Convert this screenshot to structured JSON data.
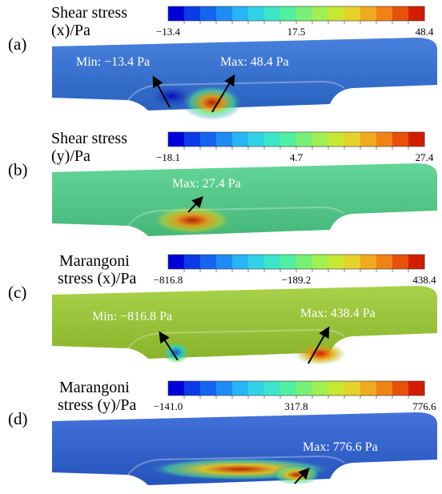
{
  "panels": [
    {
      "label": "(a)",
      "title": [
        "Shear stress",
        "(x)/Pa"
      ],
      "ticks": [
        "−13.4",
        "17.5",
        "48.4"
      ],
      "annotations": [
        "Min: −13.4 Pa",
        "Max: 48.4 Pa"
      ]
    },
    {
      "label": "(b)",
      "title": [
        "Shear stress",
        "(y)/Pa"
      ],
      "ticks": [
        "−18.1",
        "4.7",
        "27.4"
      ],
      "annotations": [
        "Max: 27.4 Pa"
      ]
    },
    {
      "label": "(c)",
      "title": [
        "Marangoni",
        "stress (x)/Pa"
      ],
      "ticks": [
        "−816.8",
        "−189.2",
        "438.4"
      ],
      "annotations": [
        "Min: −816.8 Pa",
        "Max: 438.4 Pa"
      ]
    },
    {
      "label": "(d)",
      "title": [
        "Marangoni",
        "stress (y)/Pa"
      ],
      "ticks": [
        "−141.0",
        "317.8",
        "776.6"
      ],
      "annotations": [
        "Max: 776.6 Pa"
      ]
    }
  ]
}
